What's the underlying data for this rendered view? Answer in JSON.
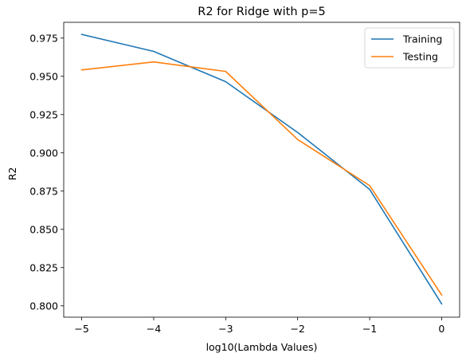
{
  "chart_data": {
    "type": "line",
    "title": "R2 for Ridge with p=5",
    "xlabel": "log10(Lambda Values)",
    "ylabel": "R2",
    "x": [
      -5,
      -4,
      -3,
      -2,
      -1,
      0
    ],
    "xticks": [
      "−5",
      "−4",
      "−3",
      "−2",
      "−1",
      "0"
    ],
    "yticks": [
      "0.800",
      "0.825",
      "0.850",
      "0.875",
      "0.900",
      "0.925",
      "0.950",
      "0.975"
    ],
    "xlim": [
      -5.25,
      0.25
    ],
    "ylim": [
      0.7926,
      0.9853
    ],
    "grid": false,
    "legend_position": "top-right",
    "series": [
      {
        "name": "Training",
        "color": "#1f77b4",
        "values": [
          0.9774,
          0.9663,
          0.9465,
          0.9133,
          0.8761,
          0.8013
        ]
      },
      {
        "name": "Testing",
        "color": "#ff7f0e",
        "values": [
          0.9542,
          0.9594,
          0.9532,
          0.9087,
          0.8786,
          0.8071
        ]
      }
    ]
  }
}
